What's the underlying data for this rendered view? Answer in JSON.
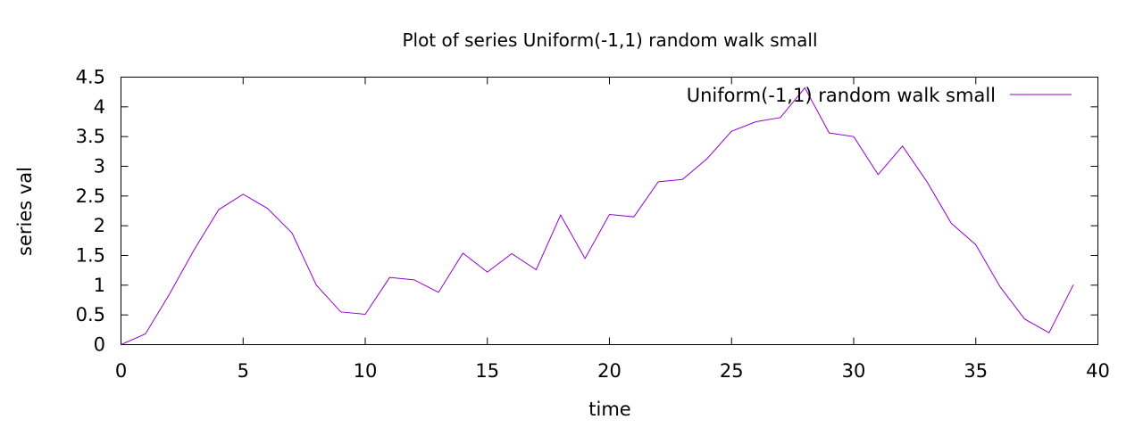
{
  "chart_data": {
    "type": "line",
    "title": "Plot of series Uniform(-1,1) random walk small",
    "xlabel": "time",
    "ylabel": "series val",
    "xlim": [
      0,
      40
    ],
    "ylim": [
      0,
      4.5
    ],
    "xticks": [
      0,
      5,
      10,
      15,
      20,
      25,
      30,
      35,
      40
    ],
    "yticks": [
      0,
      0.5,
      1,
      1.5,
      2,
      2.5,
      3,
      3.5,
      4,
      4.5
    ],
    "grid": false,
    "legend_position": "top-right",
    "series": [
      {
        "name": "Uniform(-1,1) random walk small",
        "color": "#9400d3",
        "x": [
          0,
          1,
          2,
          3,
          4,
          5,
          6,
          7,
          8,
          9,
          10,
          11,
          12,
          13,
          14,
          15,
          16,
          17,
          18,
          19,
          20,
          21,
          22,
          23,
          24,
          25,
          26,
          27,
          28,
          29,
          30,
          31,
          32,
          33,
          34,
          35,
          36,
          37,
          38,
          39
        ],
        "y": [
          0.0,
          0.18,
          0.86,
          1.6,
          2.27,
          2.53,
          2.29,
          1.88,
          1.0,
          0.55,
          0.51,
          1.13,
          1.09,
          0.88,
          1.54,
          1.22,
          1.53,
          1.26,
          2.18,
          1.45,
          2.19,
          2.15,
          2.74,
          2.78,
          3.13,
          3.59,
          3.75,
          3.82,
          4.32,
          3.56,
          3.5,
          2.86,
          3.34,
          2.74,
          2.04,
          1.68,
          0.97,
          0.43,
          0.2,
          1.01
        ]
      }
    ]
  }
}
